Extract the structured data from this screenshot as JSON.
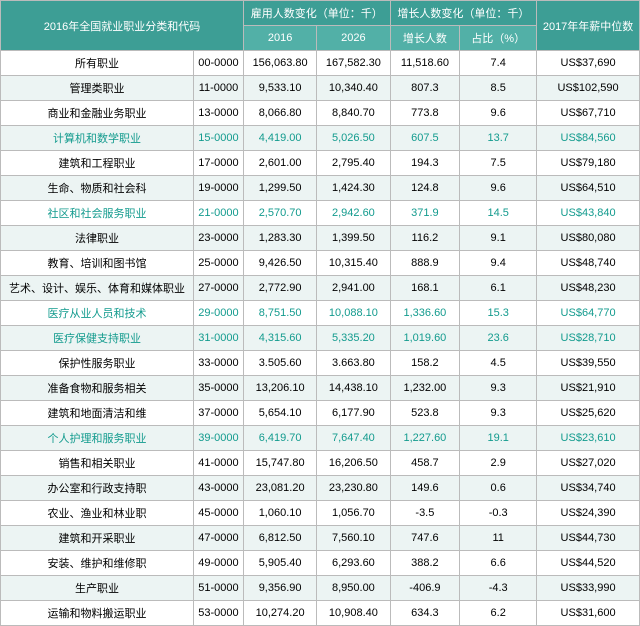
{
  "header": {
    "group_title": "2016年全国就业职业分类和代码",
    "emp_change": "雇用人数变化（单位：千）",
    "growth_change": "增长人数变化（单位：千）",
    "median": "2017年年薪中位数",
    "y2016": "2016",
    "y2026": "2026",
    "growth_n": "增长人数",
    "growth_pct": "占比（%）"
  },
  "rows": [
    {
      "name": "所有职业",
      "code": "00-0000",
      "e16": "156,063.80",
      "e26": "167,582.30",
      "gn": "11,518.60",
      "gp": "7.4",
      "sal": "US$37,690"
    },
    {
      "name": "管理类职业",
      "code": "11-0000",
      "e16": "9,533.10",
      "e26": "10,340.40",
      "gn": "807.3",
      "gp": "8.5",
      "sal": "US$102,590"
    },
    {
      "name": "商业和金融业务职业",
      "code": "13-0000",
      "e16": "8,066.80",
      "e26": "8,840.70",
      "gn": "773.8",
      "gp": "9.6",
      "sal": "US$67,710"
    },
    {
      "name": "计算机和数学职业",
      "code": "15-0000",
      "e16": "4,419.00",
      "e26": "5,026.50",
      "gn": "607.5",
      "gp": "13.7",
      "sal": "US$84,560",
      "hl": true
    },
    {
      "name": "建筑和工程职业",
      "code": "17-0000",
      "e16": "2,601.00",
      "e26": "2,795.40",
      "gn": "194.3",
      "gp": "7.5",
      "sal": "US$79,180"
    },
    {
      "name": "生命、物质和社会科",
      "code": "19-0000",
      "e16": "1,299.50",
      "e26": "1,424.30",
      "gn": "124.8",
      "gp": "9.6",
      "sal": "US$64,510"
    },
    {
      "name": "社区和社会服务职业",
      "code": "21-0000",
      "e16": "2,570.70",
      "e26": "2,942.60",
      "gn": "371.9",
      "gp": "14.5",
      "sal": "US$43,840",
      "hl": true
    },
    {
      "name": "法律职业",
      "code": "23-0000",
      "e16": "1,283.30",
      "e26": "1,399.50",
      "gn": "116.2",
      "gp": "9.1",
      "sal": "US$80,080"
    },
    {
      "name": "教育、培训和图书馆",
      "code": "25-0000",
      "e16": "9,426.50",
      "e26": "10,315.40",
      "gn": "888.9",
      "gp": "9.4",
      "sal": "US$48,740"
    },
    {
      "name": "艺术、设计、娱乐、体育和媒体职业",
      "code": "27-0000",
      "e16": "2,772.90",
      "e26": "2,941.00",
      "gn": "168.1",
      "gp": "6.1",
      "sal": "US$48,230"
    },
    {
      "name": "医疗从业人员和技术",
      "code": "29-0000",
      "e16": "8,751.50",
      "e26": "10,088.10",
      "gn": "1,336.60",
      "gp": "15.3",
      "sal": "US$64,770",
      "hl": true
    },
    {
      "name": "医疗保健支持职业",
      "code": "31-0000",
      "e16": "4,315.60",
      "e26": "5,335.20",
      "gn": "1,019.60",
      "gp": "23.6",
      "sal": "US$28,710",
      "hl": true
    },
    {
      "name": "保护性服务职业",
      "code": "33-0000",
      "e16": "3.505.60",
      "e26": "3.663.80",
      "gn": "158.2",
      "gp": "4.5",
      "sal": "US$39,550"
    },
    {
      "name": "准备食物和服务相关",
      "code": "35-0000",
      "e16": "13,206.10",
      "e26": "14,438.10",
      "gn": "1,232.00",
      "gp": "9.3",
      "sal": "US$21,910"
    },
    {
      "name": "建筑和地面清洁和维",
      "code": "37-0000",
      "e16": "5,654.10",
      "e26": "6,177.90",
      "gn": "523.8",
      "gp": "9.3",
      "sal": "US$25,620"
    },
    {
      "name": "个人护理和服务职业",
      "code": "39-0000",
      "e16": "6,419.70",
      "e26": "7,647.40",
      "gn": "1,227.60",
      "gp": "19.1",
      "sal": "US$23,610",
      "hl": true
    },
    {
      "name": "销售和相关职业",
      "code": "41-0000",
      "e16": "15,747.80",
      "e26": "16,206.50",
      "gn": "458.7",
      "gp": "2.9",
      "sal": "US$27,020"
    },
    {
      "name": "办公室和行政支持职",
      "code": "43-0000",
      "e16": "23,081.20",
      "e26": "23,230.80",
      "gn": "149.6",
      "gp": "0.6",
      "sal": "US$34,740"
    },
    {
      "name": "农业、渔业和林业职",
      "code": "45-0000",
      "e16": "1,060.10",
      "e26": "1,056.70",
      "gn": "-3.5",
      "gp": "-0.3",
      "sal": "US$24,390"
    },
    {
      "name": "建筑和开采职业",
      "code": "47-0000",
      "e16": "6,812.50",
      "e26": "7,560.10",
      "gn": "747.6",
      "gp": "11",
      "sal": "US$44,730"
    },
    {
      "name": "安装、维护和维修职",
      "code": "49-0000",
      "e16": "5,905.40",
      "e26": "6,293.60",
      "gn": "388.2",
      "gp": "6.6",
      "sal": "US$44,520"
    },
    {
      "name": "生产职业",
      "code": "51-0000",
      "e16": "9,356.90",
      "e26": "8,950.00",
      "gn": "-406.9",
      "gp": "-4.3",
      "sal": "US$33,990"
    },
    {
      "name": "运输和物料搬运职业",
      "code": "53-0000",
      "e16": "10,274.20",
      "e26": "10,908.40",
      "gn": "634.3",
      "gp": "6.2",
      "sal": "US$31,600"
    }
  ]
}
